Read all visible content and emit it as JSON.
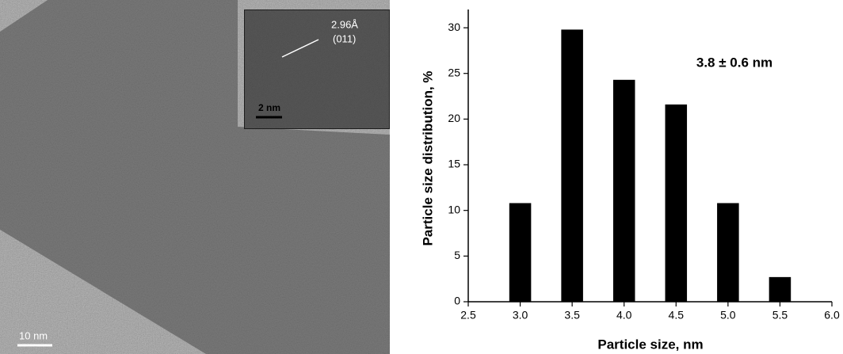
{
  "micrograph": {
    "scale_bar": "10 nm",
    "inset": {
      "spacing": "2.96Å",
      "plane": "(011)",
      "scale_bar": "2 nm"
    }
  },
  "chart_data": {
    "type": "bar",
    "ylabel": "Particle size distribution, %",
    "xlabel": "Particle size, nm",
    "annotation": "3.8 ± 0.6 nm",
    "x": [
      3.0,
      3.5,
      4.0,
      4.5,
      5.0,
      5.5
    ],
    "values": [
      10.8,
      29.8,
      24.3,
      21.6,
      10.8,
      2.7
    ],
    "color": "#000000",
    "xlim": [
      2.5,
      6.0
    ],
    "xticks": [
      2.5,
      {
        "value": 3,
        "label": "3.0"
      },
      3.5,
      {
        "value": 4,
        "label": "4.0"
      },
      4.5,
      {
        "value": 5,
        "label": "5.0"
      },
      5.5,
      {
        "value": 6,
        "label": "6.0"
      }
    ],
    "ylim": [
      0,
      32
    ],
    "yticks": [
      0,
      5,
      10,
      15,
      20,
      25,
      30
    ],
    "grid": false
  }
}
